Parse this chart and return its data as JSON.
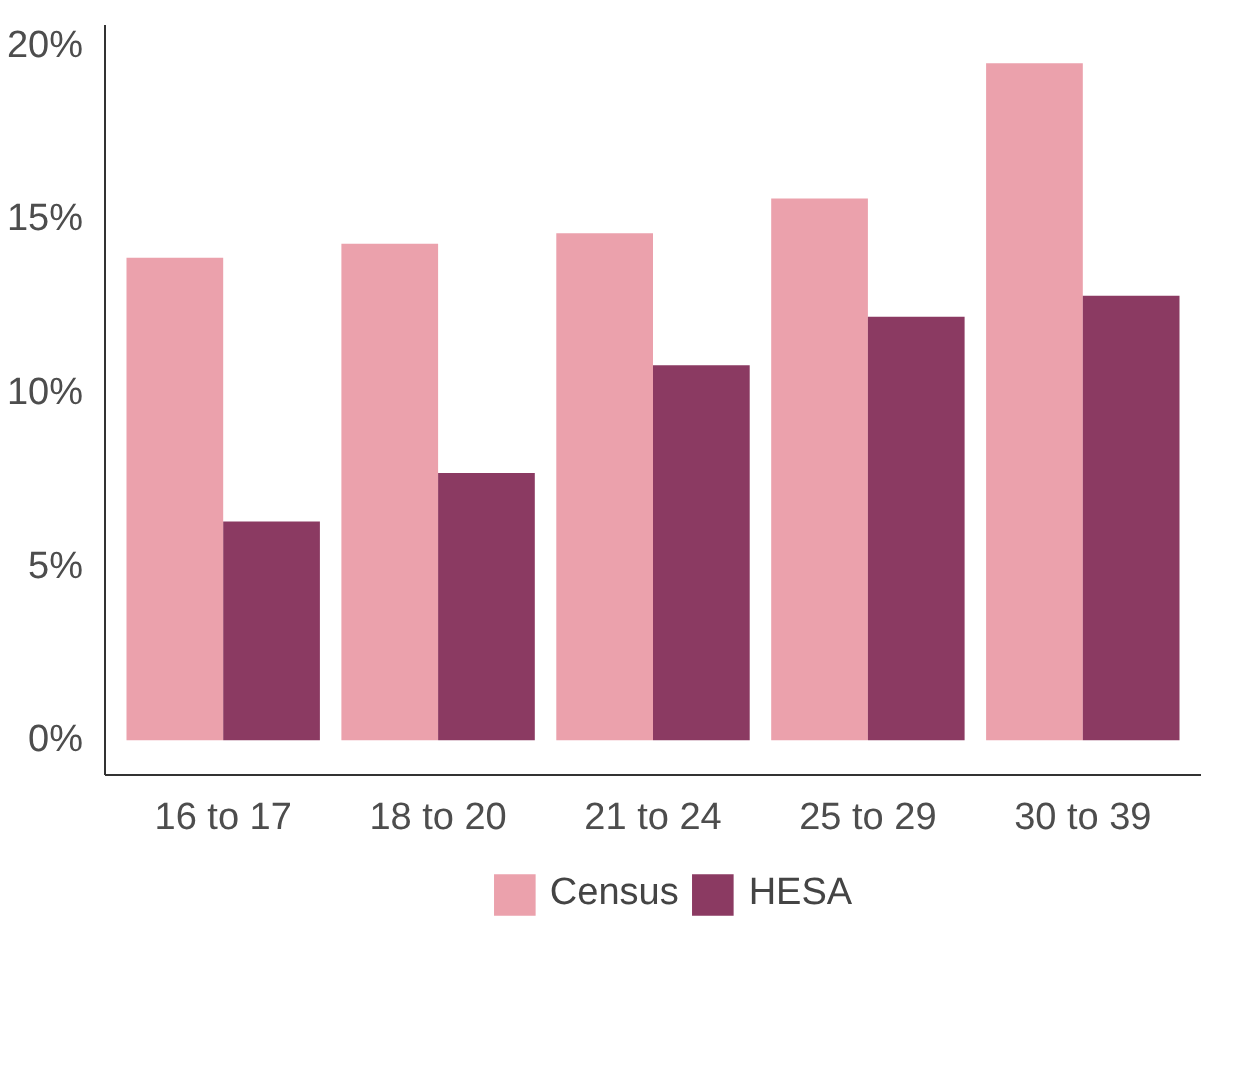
{
  "chart_data": {
    "type": "bar",
    "categories": [
      "16 to 17",
      "18 to 20",
      "21 to 24",
      "25 to 29",
      "30 to 39"
    ],
    "series": [
      {
        "name": "Census",
        "color": "#eba1ac",
        "values": [
          13.9,
          14.3,
          14.6,
          15.6,
          19.5
        ]
      },
      {
        "name": "HESA",
        "color": "#8b3a62",
        "values": [
          6.3,
          7.7,
          10.8,
          12.2,
          12.8
        ]
      }
    ],
    "ylim": [
      -1,
      20.6
    ],
    "yticks": [
      {
        "value": 0,
        "label": "0%"
      },
      {
        "value": 5,
        "label": "5%"
      },
      {
        "value": 10,
        "label": "10%"
      },
      {
        "value": 15,
        "label": "15%"
      },
      {
        "value": 20,
        "label": "20%"
      }
    ],
    "grid": false,
    "legend": "bottom"
  }
}
